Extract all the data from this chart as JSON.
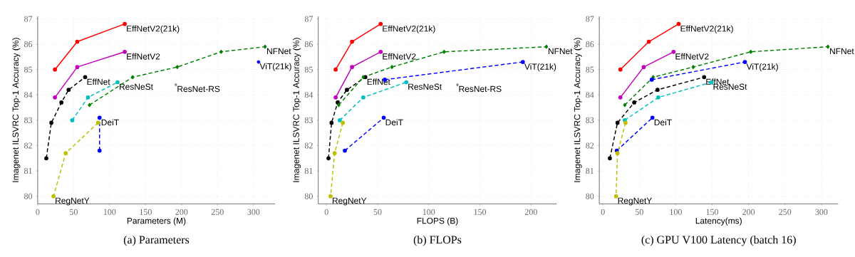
{
  "chart_data": [
    {
      "type": "line",
      "title": "(a) Parameters",
      "xlabel": "Parameters (M)",
      "ylabel": "Imagenet ILSVRC Top-1 Accuracy (%)",
      "xlim": [
        0,
        330
      ],
      "ylim": [
        79.7,
        87.1
      ],
      "xticks": [
        0,
        50,
        100,
        150,
        200,
        250,
        300
      ],
      "yticks": [
        80,
        81,
        82,
        83,
        84,
        85,
        86,
        87
      ],
      "grid": true,
      "series": [
        {
          "name": "EffNetV2(21k)",
          "color": "#ff0000",
          "line_style": "solid",
          "marker": "circle",
          "x": [
            24,
            55,
            121
          ],
          "values": [
            85.0,
            86.1,
            86.8
          ]
        },
        {
          "name": "EffNetV2",
          "color": "#bf00bf",
          "line_style": "solid",
          "marker": "circle",
          "x": [
            24,
            55,
            121
          ],
          "values": [
            83.9,
            85.1,
            85.7
          ]
        },
        {
          "name": "EffNet",
          "color": "#000000",
          "line_style": "dashed",
          "marker": "circle",
          "x": [
            12,
            19,
            33,
            43,
            66
          ],
          "values": [
            81.5,
            82.9,
            83.7,
            84.2,
            84.7
          ]
        },
        {
          "name": "ResNeSt",
          "color": "#00bfbf",
          "line_style": "dashed",
          "marker": "circle",
          "x": [
            48,
            70,
            111
          ],
          "values": [
            83.0,
            83.9,
            84.5
          ]
        },
        {
          "name": "NFNet",
          "color": "#008000",
          "line_style": "dashed",
          "marker": "diamond",
          "x": [
            72,
            132,
            194,
            255,
            316
          ],
          "values": [
            83.6,
            84.7,
            85.1,
            85.7,
            85.9
          ]
        },
        {
          "name": "ViT(21k)",
          "color": "#0000ff",
          "type": "scatter",
          "marker": "circle",
          "x": [
            307
          ],
          "values": [
            85.3
          ]
        },
        {
          "name": "ResNet-RS",
          "color": "#808080",
          "type": "scatter",
          "marker": "diamond",
          "x": [
            192
          ],
          "values": [
            84.4
          ]
        },
        {
          "name": "DeiT",
          "color": "#0000ff",
          "line_style": "dashed",
          "marker": "circle",
          "x": [
            86,
            86
          ],
          "values": [
            81.8,
            83.1
          ]
        },
        {
          "name": "RegNetY",
          "color": "#bfbf00",
          "line_style": "dashed",
          "marker": "circle",
          "x": [
            84,
            39,
            22
          ],
          "values": [
            82.9,
            81.7,
            80.0
          ]
        }
      ]
    },
    {
      "type": "line",
      "title": "(b) FLOPs",
      "xlabel": "FLOPS (B)",
      "ylabel": "Imagenet ILSVRC Top-1 Accuracy (%)",
      "xlim": [
        -8,
        225
      ],
      "ylim": [
        79.7,
        87.1
      ],
      "xticks": [
        0,
        50,
        100,
        150,
        200
      ],
      "yticks": [
        80,
        81,
        82,
        83,
        84,
        85,
        86,
        87
      ],
      "grid": true,
      "series": [
        {
          "name": "EffNetV2(21k)",
          "color": "#ff0000",
          "line_style": "solid",
          "marker": "circle",
          "x": [
            9,
            25,
            53
          ],
          "values": [
            85.0,
            86.1,
            86.8
          ]
        },
        {
          "name": "EffNetV2",
          "color": "#bf00bf",
          "line_style": "solid",
          "marker": "circle",
          "x": [
            9,
            25,
            53
          ],
          "values": [
            83.9,
            85.1,
            85.7
          ]
        },
        {
          "name": "EffNet",
          "color": "#000000",
          "line_style": "dashed",
          "marker": "circle",
          "x": [
            2,
            5,
            11,
            20,
            38
          ],
          "values": [
            81.5,
            82.9,
            83.7,
            84.2,
            84.7
          ]
        },
        {
          "name": "ResNeSt",
          "color": "#00bfbf",
          "line_style": "dashed",
          "marker": "circle",
          "x": [
            13,
            36,
            78
          ],
          "values": [
            83.0,
            83.9,
            84.5
          ]
        },
        {
          "name": "NFNet",
          "color": "#008000",
          "line_style": "dashed",
          "marker": "diamond",
          "x": [
            12,
            36,
            64,
            115,
            215
          ],
          "values": [
            83.6,
            84.7,
            85.1,
            85.7,
            85.9
          ]
        },
        {
          "name": "ViT(21k)",
          "color": "#0000ff",
          "line_style": "dashed",
          "marker": "circle",
          "x": [
            57,
            192
          ],
          "values": [
            84.6,
            85.3
          ]
        },
        {
          "name": "ResNet-RS",
          "color": "#808080",
          "type": "scatter",
          "marker": "diamond",
          "x": [
            128
          ],
          "values": [
            84.4
          ]
        },
        {
          "name": "DeiT",
          "color": "#0000ff",
          "line_style": "dashed",
          "marker": "circle",
          "x": [
            18,
            56
          ],
          "values": [
            81.8,
            83.1
          ]
        },
        {
          "name": "RegNetY",
          "color": "#bfbf00",
          "line_style": "dashed",
          "marker": "circle",
          "x": [
            16,
            8,
            4
          ],
          "values": [
            82.9,
            81.7,
            80.0
          ]
        }
      ]
    },
    {
      "type": "line",
      "title": "(c) GPU V100 Latency (batch 16)",
      "xlabel": "Latency(ms)",
      "ylabel": "Imagenet ILSVRC Top-1 Accuracy (%)",
      "xlim": [
        -5,
        323
      ],
      "ylim": [
        79.7,
        87.1
      ],
      "xticks": [
        0,
        50,
        100,
        150,
        200,
        250,
        300
      ],
      "yticks": [
        80,
        81,
        82,
        83,
        84,
        85,
        86,
        87
      ],
      "grid": true,
      "series": [
        {
          "name": "EffNetV2(21k)",
          "color": "#ff0000",
          "line_style": "solid",
          "marker": "circle",
          "x": [
            24,
            63,
            104
          ],
          "values": [
            85.0,
            86.1,
            86.8
          ]
        },
        {
          "name": "EffNetV2",
          "color": "#bf00bf",
          "line_style": "solid",
          "marker": "circle",
          "x": [
            24,
            56,
            97
          ],
          "values": [
            83.9,
            85.1,
            85.7
          ]
        },
        {
          "name": "EffNet",
          "color": "#000000",
          "line_style": "dashed",
          "marker": "circle",
          "x": [
            9.5,
            20,
            43,
            75,
            139
          ],
          "values": [
            81.5,
            82.9,
            83.7,
            84.2,
            84.7
          ]
        },
        {
          "name": "ResNeSt",
          "color": "#00bfbf",
          "line_style": "dashed",
          "marker": "circle",
          "x": [
            30,
            76,
            149
          ],
          "values": [
            83.0,
            83.9,
            84.5
          ]
        },
        {
          "name": "NFNet",
          "color": "#008000",
          "line_style": "dashed",
          "marker": "diamond",
          "x": [
            30,
            69,
            124,
            203,
            309
          ],
          "values": [
            83.6,
            84.7,
            85.1,
            85.7,
            85.9
          ]
        },
        {
          "name": "ViT(21k)",
          "color": "#0000ff",
          "line_style": "dashed",
          "marker": "circle",
          "x": [
            67,
            195
          ],
          "values": [
            84.6,
            85.3
          ]
        },
        {
          "name": "DeiT",
          "color": "#0000ff",
          "line_style": "dashed",
          "marker": "circle",
          "x": [
            19,
            68
          ],
          "values": [
            81.8,
            83.1
          ]
        },
        {
          "name": "RegNetY",
          "color": "#bfbf00",
          "line_style": "dashed",
          "marker": "circle",
          "x": [
            31,
            20,
            18
          ],
          "values": [
            82.9,
            81.7,
            80.0
          ]
        }
      ]
    }
  ]
}
